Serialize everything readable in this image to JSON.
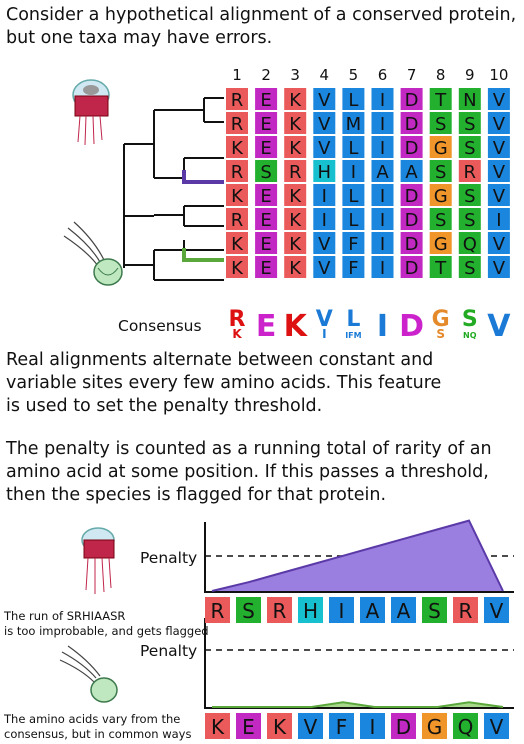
{
  "intro": "Consider a hypothetical alignment of a conserved protein,\nbut one taxa may have errors.",
  "paragraph2": "Real alignments alternate between constant and\nvariable sites every few amino acids. This feature\nis used to set the penalty threshold.",
  "paragraph3": "The penalty is counted as a running total of rarity of an\namino acid at some position. If this passes a threshold,\nthen the species is flagged for that protein.",
  "positions": [
    "1",
    "2",
    "3",
    "4",
    "5",
    "6",
    "7",
    "8",
    "9",
    "10"
  ],
  "alignment": [
    "REKVLIDTNV",
    "REKVMIDSSV",
    "KEKVLIDGSV",
    "RSRHIAASRV",
    "KEKILIDGSV",
    "REKILIDSSI",
    "KEKVFIDGQV",
    "KEKVFIDTSV"
  ],
  "highlight_rows": {
    "flagged": 3,
    "normal": 6
  },
  "consensus_label": "Consensus",
  "consensus": [
    {
      "main": "R",
      "sub": "K",
      "color": "#dd1111"
    },
    {
      "main": "E",
      "sub": "",
      "color": "#cc22cc"
    },
    {
      "main": "K",
      "sub": "",
      "color": "#dd1111"
    },
    {
      "main": "V",
      "sub": "I",
      "color": "#1a7ad6"
    },
    {
      "main": "L",
      "sub": "IFM",
      "color": "#1a7ad6"
    },
    {
      "main": "I",
      "sub": "",
      "color": "#1a7ad6"
    },
    {
      "main": "D",
      "sub": "",
      "color": "#cc22cc"
    },
    {
      "main": "G",
      "sub": "S",
      "color": "#e58a2a"
    },
    {
      "main": "S",
      "sub": "NQ",
      "color": "#22aa22"
    },
    {
      "main": "V",
      "sub": "",
      "color": "#1a7ad6"
    }
  ],
  "penalty_label": "Penalty",
  "flagged_caption": [
    "The run of SRHIAASR",
    "is too improbable, and gets flagged"
  ],
  "normal_caption": [
    "The amino acids vary from the",
    "consensus, but in common ways"
  ],
  "flagged_row": "RSRHIAASRV",
  "normal_row": "KEKVFIDGQV",
  "flagged_penalty": [
    0,
    1,
    2,
    3,
    4,
    5,
    6,
    7,
    8,
    0
  ],
  "normal_penalty": [
    0,
    0,
    0,
    0,
    0.4,
    0,
    0,
    0,
    0.4,
    0
  ],
  "colors": {
    "R": "#ea5a5a",
    "K": "#ea5a5a",
    "E": "#c228c2",
    "D": "#c228c2",
    "V": "#1a86de",
    "L": "#1a86de",
    "I": "#1a86de",
    "M": "#1a86de",
    "F": "#1a86de",
    "T": "#22b02e",
    "S": "#22b02e",
    "N": "#22b02e",
    "Q": "#22b02e",
    "G": "#f0952a",
    "H": "#17c0cf",
    "A": "#1a86de",
    "flag_fill": "#9a7ee0",
    "flag_line": "#5b3aa8",
    "normal_fill": "#a8d88c",
    "normal_line": "#5aa83c"
  }
}
